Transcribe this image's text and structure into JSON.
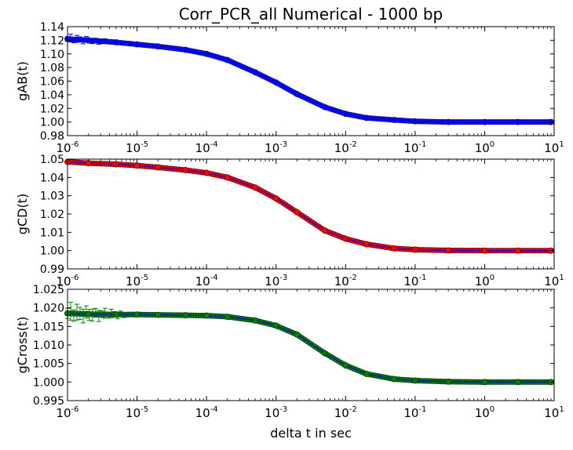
{
  "figure": {
    "title": "Corr_PCR_all Numerical - 1000 bp",
    "xlabel": "delta t in sec"
  },
  "chart_data": [
    {
      "type": "scatter",
      "ylabel": "gAB(t)",
      "xscale": "log",
      "xlim": [
        1e-06,
        10
      ],
      "ylim": [
        0.98,
        1.14
      ],
      "x_ticks": [
        "10^-6",
        "10^-5",
        "10^-4",
        "10^-3",
        "10^-2",
        "10^-1",
        "10^0",
        "10^1"
      ],
      "y_ticks": [
        "0.98",
        "1.00",
        "1.02",
        "1.04",
        "1.06",
        "1.08",
        "1.10",
        "1.12",
        "1.14"
      ],
      "grid": false,
      "legend": "none",
      "series": [
        {
          "color": "#0000ff",
          "marker_edge": "#1a1a8a",
          "error_color": "#0000ff",
          "x": [
            1e-06,
            2e-06,
            5e-06,
            1e-05,
            2e-05,
            5e-05,
            0.0001,
            0.0002,
            0.0005,
            0.001,
            0.002,
            0.005,
            0.01,
            0.02,
            0.05,
            0.1,
            0.3,
            1,
            3,
            9
          ],
          "y": [
            1.122,
            1.12,
            1.117,
            1.114,
            1.111,
            1.106,
            1.1,
            1.091,
            1.073,
            1.058,
            1.041,
            1.022,
            1.012,
            1.006,
            1.003,
            1.001,
            1.0,
            1.0,
            1.0,
            1.0
          ],
          "yerr_at_start": 0.006
        }
      ]
    },
    {
      "type": "scatter",
      "ylabel": "gCD(t)",
      "xscale": "log",
      "xlim": [
        1e-06,
        10
      ],
      "ylim": [
        0.99,
        1.05
      ],
      "x_ticks": [
        "10^-6",
        "10^-5",
        "10^-4",
        "10^-3",
        "10^-2",
        "10^-1",
        "10^0",
        "10^1"
      ],
      "y_ticks": [
        "0.99",
        "1.00",
        "1.01",
        "1.02",
        "1.03",
        "1.04",
        "1.05"
      ],
      "grid": false,
      "legend": "none",
      "series": [
        {
          "color": "#ff0000",
          "marker_edge": "#5a0000",
          "fit_color": "#0000ff",
          "x": [
            1e-06,
            2e-06,
            5e-06,
            1e-05,
            2e-05,
            5e-05,
            0.0001,
            0.0002,
            0.0005,
            0.001,
            0.002,
            0.005,
            0.01,
            0.02,
            0.05,
            0.1,
            0.3,
            1,
            3,
            9
          ],
          "y": [
            1.0485,
            1.0478,
            1.0472,
            1.0465,
            1.0455,
            1.044,
            1.0425,
            1.04,
            1.0345,
            1.0285,
            1.021,
            1.011,
            1.0065,
            1.0035,
            1.0012,
            1.0005,
            1.0001,
            1.0,
            1.0,
            1.0
          ]
        }
      ]
    },
    {
      "type": "scatter",
      "ylabel": "gCross(t)",
      "xscale": "log",
      "xlim": [
        1e-06,
        10
      ],
      "ylim": [
        0.995,
        1.025
      ],
      "x_ticks": [
        "10^-6",
        "10^-5",
        "10^-4",
        "10^-3",
        "10^-2",
        "10^-1",
        "10^0",
        "10^1"
      ],
      "y_ticks": [
        "0.995",
        "1.000",
        "1.005",
        "1.010",
        "1.015",
        "1.020",
        "1.025"
      ],
      "grid": false,
      "legend": "none",
      "series": [
        {
          "color": "#008000",
          "marker_edge": "#003300",
          "fit_color": "#0000ff",
          "error_color": "#008000",
          "x": [
            1e-06,
            2e-06,
            5e-06,
            1e-05,
            2e-05,
            5e-05,
            0.0001,
            0.0002,
            0.0005,
            0.001,
            0.002,
            0.005,
            0.01,
            0.02,
            0.05,
            0.1,
            0.3,
            1,
            3,
            9
          ],
          "y": [
            1.0185,
            1.0183,
            1.0182,
            1.0182,
            1.0181,
            1.018,
            1.0179,
            1.0176,
            1.0166,
            1.0152,
            1.0128,
            1.0078,
            1.0045,
            1.0022,
            1.0008,
            1.0004,
            1.0001,
            1.0,
            1.0,
            1.0
          ],
          "yerr_at_start": 0.0025
        }
      ]
    }
  ]
}
